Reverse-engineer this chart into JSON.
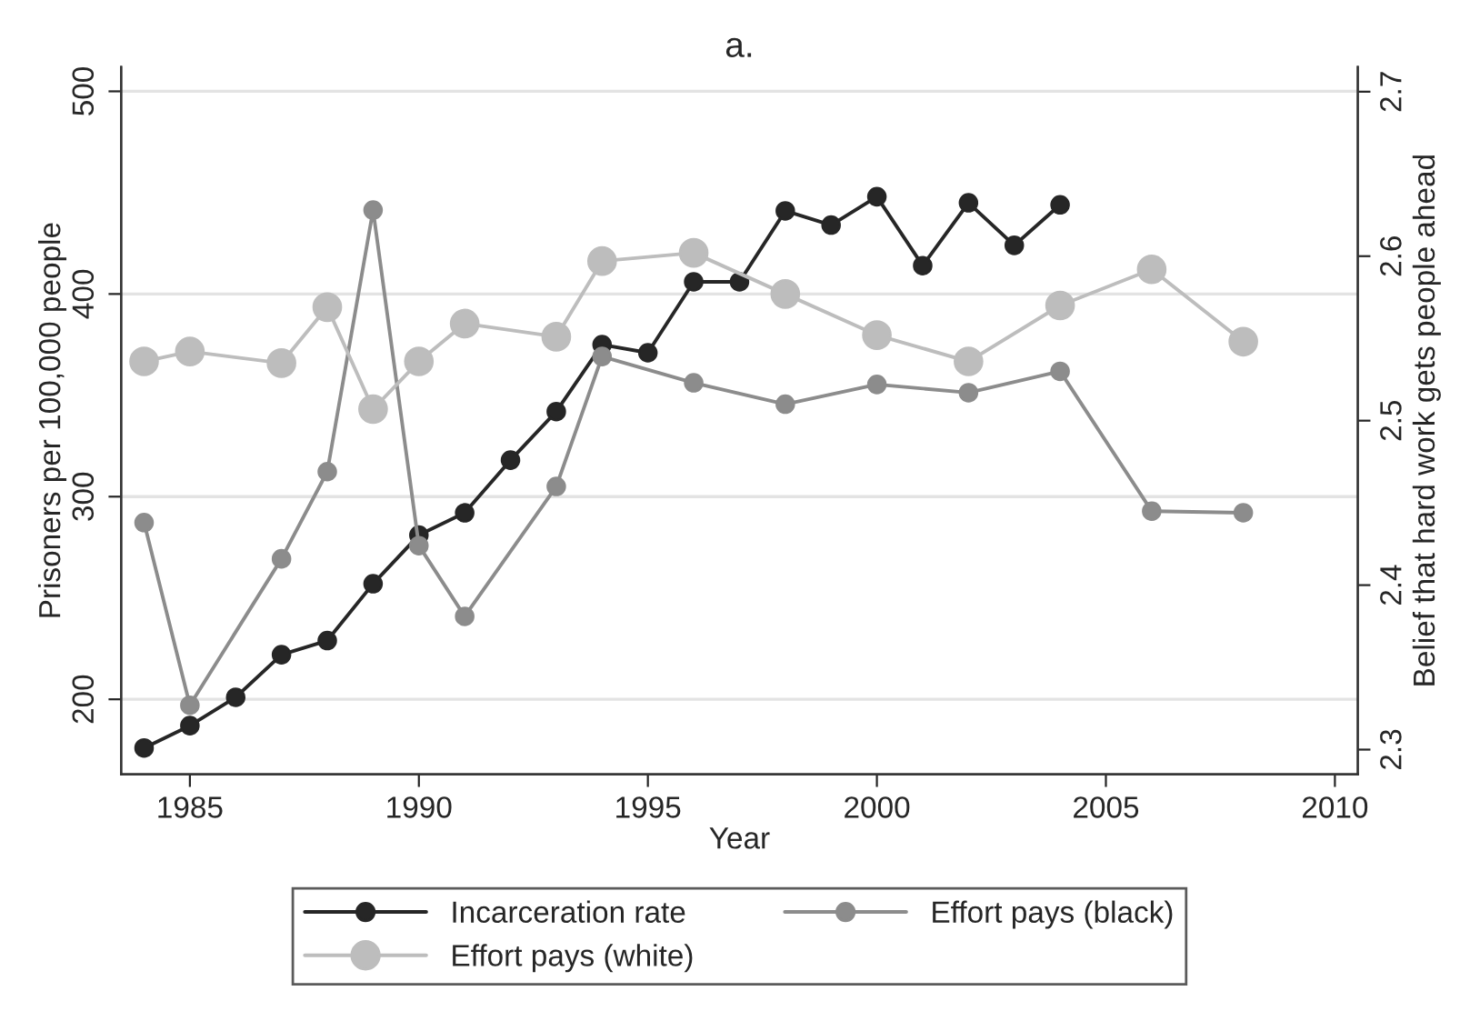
{
  "chart_data": {
    "type": "line",
    "title": "a.",
    "xlabel": "Year",
    "ylabel": "Prisoners per 100,000 people",
    "y2label": "Belief that hard work gets people ahead",
    "xlim": [
      1983.5,
      2010.5
    ],
    "xticks": [
      1985,
      1990,
      1995,
      2000,
      2005,
      2010
    ],
    "ylim": [
      163,
      512
    ],
    "yticks": [
      200,
      300,
      400,
      500
    ],
    "y2lim": [
      2.285,
      2.715
    ],
    "y2ticks": [
      2.3,
      2.4,
      2.5,
      2.6,
      2.7
    ],
    "grid": "y",
    "legend": "bottom",
    "marker": "circle",
    "series": [
      {
        "name": "Incarceration rate",
        "color": "#262626",
        "x": [
          1984,
          1985,
          1986,
          1987,
          1988,
          1989,
          1990,
          1991,
          1992,
          1993,
          1994,
          1995,
          1996,
          1997,
          1998,
          1999,
          2000,
          2001,
          2002,
          2003,
          2004
        ],
        "values": [
          176,
          187,
          201,
          222,
          229,
          257,
          281,
          292,
          318,
          342,
          375,
          371,
          406,
          406,
          441,
          434,
          448,
          414,
          445,
          424,
          444
        ]
      },
      {
        "name": "Effort pays (black)",
        "color": "#8c8c8c",
        "axis": "y2",
        "x": [
          1984,
          1985,
          1987,
          1988,
          1989,
          1990,
          1991,
          1993,
          1994,
          1996,
          1998,
          2000,
          2002,
          2004,
          2006,
          2008
        ],
        "values": [
          2.438,
          2.327,
          2.416,
          2.469,
          2.628,
          2.424,
          2.381,
          2.46,
          2.539,
          2.523,
          2.51,
          2.522,
          2.517,
          2.53,
          2.445,
          2.444
        ]
      },
      {
        "name": "Effort pays (white)",
        "color": "#bdbdbd",
        "axis": "y2",
        "x": [
          1984,
          1985,
          1987,
          1988,
          1989,
          1990,
          1991,
          1993,
          1994,
          1996,
          1998,
          2000,
          2002,
          2004,
          2006,
          2008
        ],
        "values": [
          2.536,
          2.542,
          2.535,
          2.569,
          2.507,
          2.536,
          2.559,
          2.551,
          2.597,
          2.602,
          2.577,
          2.552,
          2.536,
          2.57,
          2.592,
          2.548
        ]
      }
    ]
  }
}
